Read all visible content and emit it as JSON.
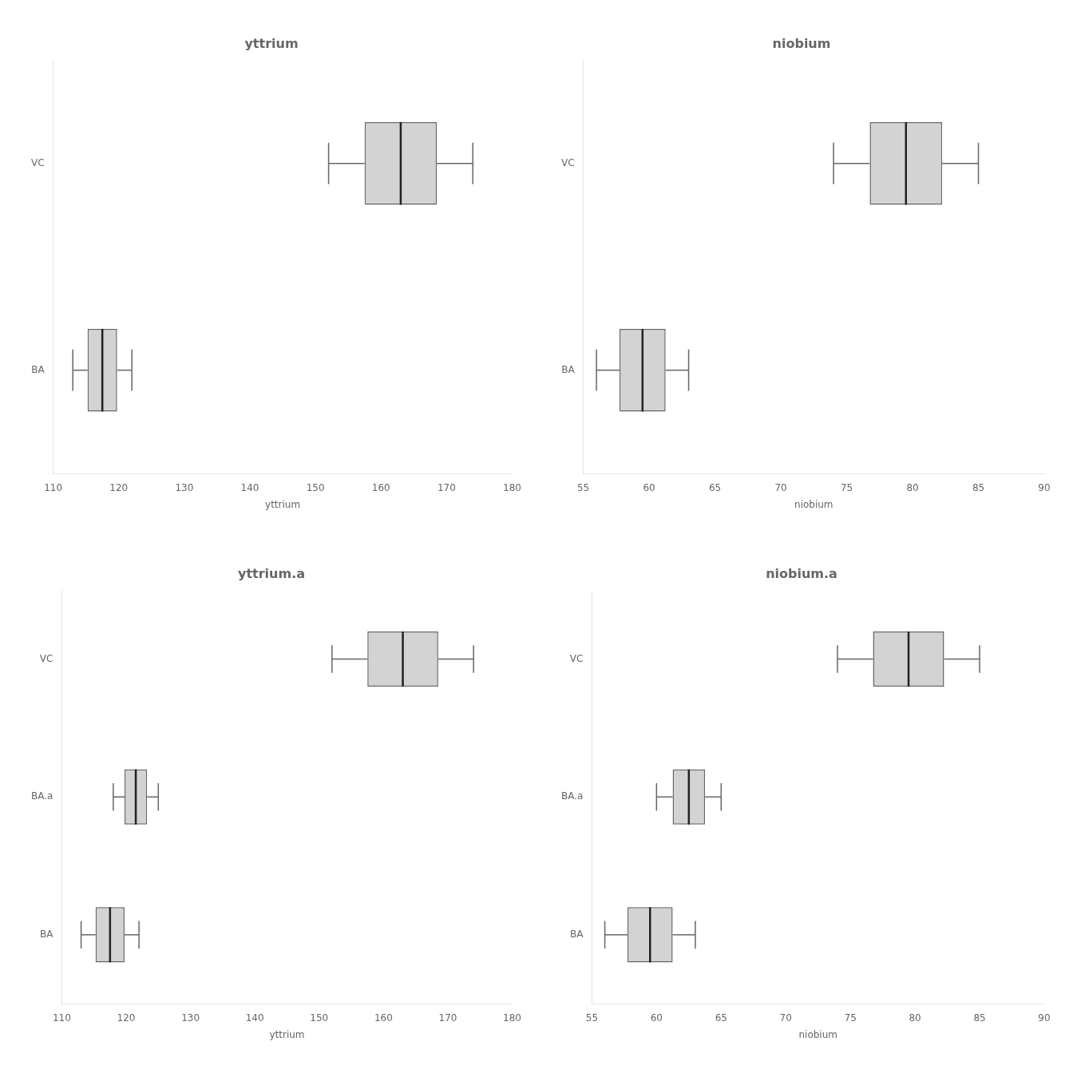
{
  "chart_data": [
    {
      "type": "boxplot",
      "title": "yttrium",
      "xlabel": "yttrium",
      "orientation": "horizontal",
      "categories": [
        "BA",
        "VC"
      ],
      "whisker_low": [
        113,
        152
      ],
      "q1": [
        115.25,
        157.5
      ],
      "median": [
        117.5,
        163
      ],
      "q3": [
        119.75,
        168.5
      ],
      "whisker_high": [
        122,
        174
      ],
      "color": "#d3d3d3",
      "xlim": [
        110,
        180
      ],
      "xticks": [
        110,
        120,
        130,
        140,
        150,
        160,
        170,
        180
      ],
      "grid": false
    },
    {
      "type": "boxplot",
      "title": "niobium",
      "xlabel": "niobium",
      "orientation": "horizontal",
      "categories": [
        "BA",
        "VC"
      ],
      "whisker_low": [
        56,
        74
      ],
      "q1": [
        57.75,
        76.75
      ],
      "median": [
        59.5,
        79.5
      ],
      "q3": [
        61.25,
        82.25
      ],
      "whisker_high": [
        63,
        85
      ],
      "color": "#d3d3d3",
      "xlim": [
        55,
        90
      ],
      "xticks": [
        55,
        60,
        65,
        70,
        75,
        80,
        85,
        90
      ],
      "grid": false
    },
    {
      "type": "boxplot",
      "title": "yttrium.a",
      "xlabel": "yttrium",
      "orientation": "horizontal",
      "categories": [
        "BA",
        "BA.a",
        "VC"
      ],
      "whisker_low": [
        113,
        118,
        152
      ],
      "q1": [
        115.25,
        119.75,
        157.5
      ],
      "median": [
        117.5,
        121.5,
        163
      ],
      "q3": [
        119.75,
        123.25,
        168.5
      ],
      "whisker_high": [
        122,
        125,
        174
      ],
      "color": "#d3d3d3",
      "xlim": [
        110,
        180
      ],
      "xticks": [
        110,
        120,
        130,
        140,
        150,
        160,
        170,
        180
      ],
      "grid": false
    },
    {
      "type": "boxplot",
      "title": "niobium.a",
      "xlabel": "niobium",
      "orientation": "horizontal",
      "categories": [
        "BA",
        "BA.a",
        "VC"
      ],
      "whisker_low": [
        56,
        60,
        74
      ],
      "q1": [
        57.75,
        61.25,
        76.75
      ],
      "median": [
        59.5,
        62.5,
        79.5
      ],
      "q3": [
        61.25,
        63.75,
        82.25
      ],
      "whisker_high": [
        63,
        65,
        85
      ],
      "color": "#d3d3d3",
      "xlim": [
        55,
        90
      ],
      "xticks": [
        55,
        60,
        65,
        70,
        75,
        80,
        85,
        90
      ],
      "grid": false
    }
  ]
}
